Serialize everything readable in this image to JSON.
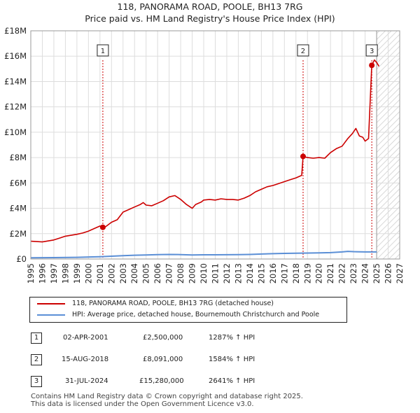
{
  "title_line1": "118, PANORAMA ROAD, POOLE, BH13 7RG",
  "title_line2": "Price paid vs. HM Land Registry's House Price Index (HPI)",
  "chart_data": {
    "type": "line",
    "xlim": [
      1995,
      2027
    ],
    "ylim": [
      0,
      18000000
    ],
    "x_ticks": [
      "1995",
      "1996",
      "1997",
      "1998",
      "1999",
      "2000",
      "2001",
      "2002",
      "2003",
      "2004",
      "2005",
      "2006",
      "2007",
      "2008",
      "2009",
      "2010",
      "2011",
      "2012",
      "2013",
      "2014",
      "2015",
      "2016",
      "2017",
      "2018",
      "2019",
      "2020",
      "2021",
      "2022",
      "2023",
      "2024",
      "2025",
      "2026",
      "2027"
    ],
    "y_ticks": [
      {
        "value": 0,
        "label": "£0"
      },
      {
        "value": 2000000,
        "label": "£2M"
      },
      {
        "value": 4000000,
        "label": "£4M"
      },
      {
        "value": 6000000,
        "label": "£6M"
      },
      {
        "value": 8000000,
        "label": "£8M"
      },
      {
        "value": 10000000,
        "label": "£10M"
      },
      {
        "value": 12000000,
        "label": "£12M"
      },
      {
        "value": 14000000,
        "label": "£14M"
      },
      {
        "value": 16000000,
        "label": "£16M"
      },
      {
        "value": 18000000,
        "label": "£18M"
      }
    ],
    "hatch_from": 2025.0,
    "series": [
      {
        "name": "118, PANORAMA ROAD, POOLE, BH13 7RG (detached house)",
        "color": "#cc0000",
        "x": [
          1995.0,
          1996.0,
          1997.0,
          1997.5,
          1998.0,
          1999.0,
          1999.5,
          2000.0,
          2000.5,
          2001.0,
          2001.25,
          2001.5,
          2002.0,
          2002.5,
          2003.0,
          2003.5,
          2004.0,
          2004.5,
          2004.75,
          2005.0,
          2005.5,
          2006.0,
          2006.5,
          2007.0,
          2007.5,
          2008.0,
          2008.5,
          2009.0,
          2009.3,
          2009.8,
          2010.0,
          2010.5,
          2011.0,
          2011.5,
          2012.0,
          2012.5,
          2013.0,
          2013.5,
          2014.0,
          2014.5,
          2015.0,
          2015.5,
          2016.0,
          2016.5,
          2017.0,
          2017.5,
          2018.0,
          2018.5,
          2018.62,
          2019.0,
          2019.5,
          2020.0,
          2020.5,
          2021.0,
          2021.5,
          2022.0,
          2022.5,
          2022.9,
          2023.2,
          2023.5,
          2023.8,
          2024.0,
          2024.3,
          2024.58,
          2024.8,
          2025.0,
          2025.2
        ],
        "y": [
          1400000,
          1350000,
          1500000,
          1650000,
          1800000,
          1950000,
          2050000,
          2200000,
          2400000,
          2600000,
          2500000,
          2550000,
          2900000,
          3100000,
          3700000,
          3900000,
          4100000,
          4300000,
          4450000,
          4250000,
          4200000,
          4400000,
          4600000,
          4900000,
          5000000,
          4700000,
          4300000,
          4000000,
          4300000,
          4500000,
          4650000,
          4700000,
          4650000,
          4750000,
          4700000,
          4700000,
          4650000,
          4800000,
          5000000,
          5300000,
          5500000,
          5700000,
          5800000,
          5950000,
          6100000,
          6250000,
          6400000,
          6600000,
          8091000,
          8000000,
          7950000,
          8000000,
          7950000,
          8400000,
          8700000,
          8900000,
          9500000,
          9900000,
          10300000,
          9700000,
          9600000,
          9300000,
          9500000,
          15280000,
          15700000,
          15500000,
          15200000
        ]
      },
      {
        "name": "HPI: Average price, detached house, Bournemouth Christchurch and Poole",
        "color": "#5b8fd6",
        "x": [
          1995.0,
          1997.0,
          1999.0,
          2001.0,
          2002.0,
          2003.0,
          2004.0,
          2005.0,
          2006.0,
          2007.0,
          2008.0,
          2009.0,
          2010.0,
          2011.0,
          2012.0,
          2013.0,
          2014.0,
          2015.0,
          2016.0,
          2017.0,
          2018.0,
          2019.0,
          2020.0,
          2021.0,
          2022.0,
          2022.5,
          2023.0,
          2024.0,
          2025.0
        ],
        "y": [
          100000,
          110000,
          130000,
          180000,
          220000,
          260000,
          300000,
          320000,
          340000,
          360000,
          350000,
          320000,
          330000,
          330000,
          335000,
          340000,
          360000,
          390000,
          420000,
          440000,
          460000,
          470000,
          480000,
          500000,
          560000,
          600000,
          580000,
          560000,
          560000
        ]
      }
    ],
    "sales": [
      {
        "label": "1",
        "x": 2001.25,
        "y": 2500000
      },
      {
        "label": "2",
        "x": 2018.62,
        "y": 8091000
      },
      {
        "label": "3",
        "x": 2024.58,
        "y": 15280000
      }
    ]
  },
  "legend": {
    "red_label": "118, PANORAMA ROAD, POOLE, BH13 7RG (detached house)",
    "blue_label": "HPI: Average price, detached house, Bournemouth Christchurch and Poole"
  },
  "transactions": [
    {
      "num": "1",
      "date": "02-APR-2001",
      "price": "£2,500,000",
      "hpi": "1287% ↑ HPI"
    },
    {
      "num": "2",
      "date": "15-AUG-2018",
      "price": "£8,091,000",
      "hpi": "1584% ↑ HPI"
    },
    {
      "num": "3",
      "date": "31-JUL-2024",
      "price": "£15,280,000",
      "hpi": "2641% ↑ HPI"
    }
  ],
  "footer_line1": "Contains HM Land Registry data © Crown copyright and database right 2025.",
  "footer_line2": "This data is licensed under the Open Government Licence v3.0."
}
